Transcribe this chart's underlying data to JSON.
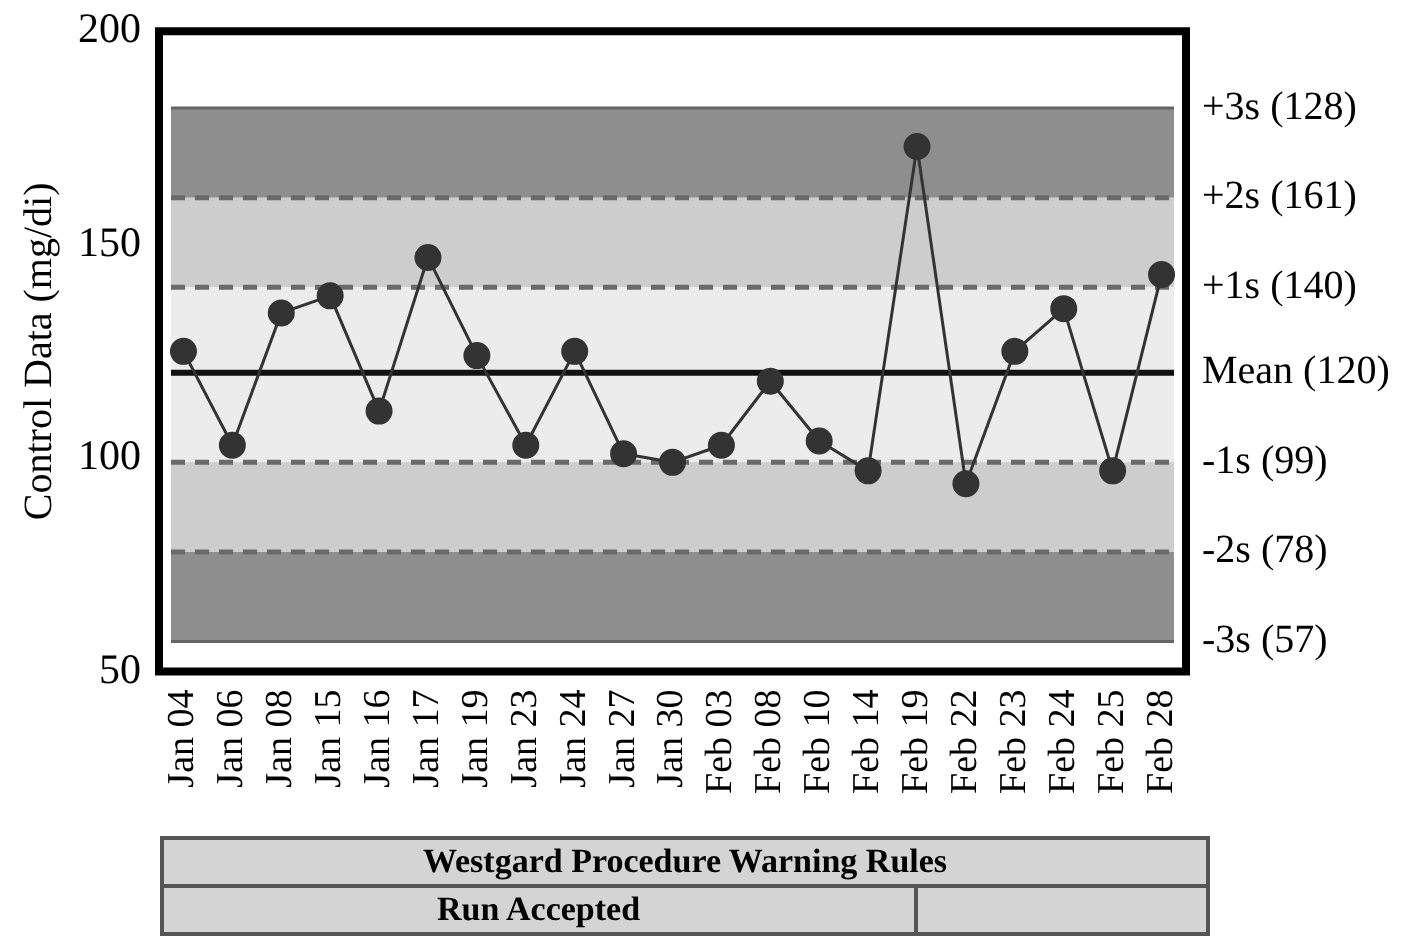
{
  "chart_data": {
    "type": "line",
    "ylabel": "Control Data (mg/di)",
    "categories": [
      "Jan 04",
      "Jan 06",
      "Jan 08",
      "Jan 15",
      "Jan 16",
      "Jan 17",
      "Jan 19",
      "Jan 23",
      "Jan 24",
      "Jan 27",
      "Jan 30",
      "Feb 03",
      "Feb 08",
      "Feb 10",
      "Feb 14",
      "Feb 19",
      "Feb 22",
      "Feb 23",
      "Feb 24",
      "Feb 25",
      "Feb 28"
    ],
    "series": [
      {
        "color": "#333333",
        "values": [
          125,
          103,
          134,
          138,
          111,
          147,
          124,
          103,
          125,
          101,
          99,
          103,
          118,
          104,
          97,
          173,
          94,
          125,
          135,
          97,
          143
        ]
      }
    ],
    "marker": "circle",
    "line_style": "solid",
    "ylim": [
      50,
      200
    ],
    "yticks": [
      50,
      100,
      150,
      200
    ],
    "grid": false,
    "legend": false,
    "bands": [
      {
        "axis": "y",
        "from": 161,
        "to": 182,
        "color": "#8e8e8e"
      },
      {
        "axis": "y",
        "from": 140,
        "to": 161,
        "color": "#cdcdcd"
      },
      {
        "axis": "y",
        "from": 99,
        "to": 140,
        "color": "#ececec"
      },
      {
        "axis": "y",
        "from": 78,
        "to": 99,
        "color": "#cdcdcd"
      },
      {
        "axis": "y",
        "from": 57,
        "to": 78,
        "color": "#8e8e8e"
      }
    ],
    "ref_lines": [
      {
        "axis": "y",
        "value": 182,
        "label": "+3s (128)",
        "color": "#666666",
        "line_style": "solid"
      },
      {
        "axis": "y",
        "value": 161,
        "label": "+2s (161)",
        "color": "#6a6a6a",
        "line_style": "dashed"
      },
      {
        "axis": "y",
        "value": 140,
        "label": "+1s (140)",
        "color": "#6a6a6a",
        "line_style": "dashed"
      },
      {
        "axis": "y",
        "value": 120,
        "label": "Mean (120)",
        "color": "#111111",
        "line_style": "solid"
      },
      {
        "axis": "y",
        "value": 99,
        "label": "-1s (99)",
        "color": "#6a6a6a",
        "line_style": "dashed"
      },
      {
        "axis": "y",
        "value": 78,
        "label": "-2s (78)",
        "color": "#6a6a6a",
        "line_style": "dashed"
      },
      {
        "axis": "y",
        "value": 57,
        "label": "-3s (57)",
        "color": "#666666",
        "line_style": "solid"
      }
    ],
    "annotations": [
      "Westgard Procedure Warning Rules",
      "Run Accepted"
    ]
  }
}
